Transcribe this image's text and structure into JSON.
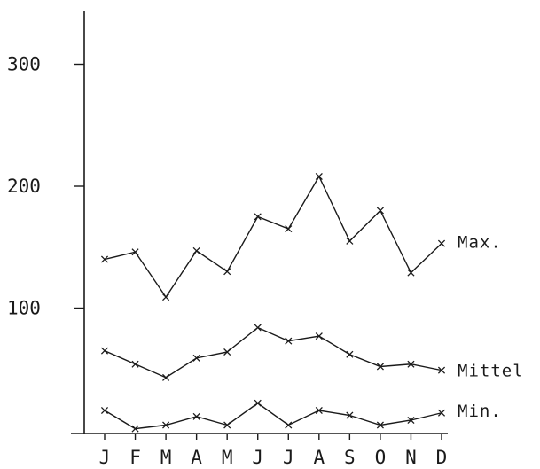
{
  "chart_data": {
    "type": "line",
    "title": "",
    "xlabel": "",
    "ylabel": "",
    "categories": [
      "J",
      "F",
      "M",
      "A",
      "M",
      "J",
      "J",
      "A",
      "S",
      "O",
      "N",
      "D"
    ],
    "yticks": [
      {
        "value": 100,
        "label": "100"
      },
      {
        "value": 200,
        "label": "200"
      },
      {
        "value": 300,
        "label": "300"
      }
    ],
    "ylim": [
      0,
      350
    ],
    "grid": false,
    "legend": "labels at line ends (right)",
    "series": [
      {
        "name": "Max.",
        "values": [
          140,
          146,
          109,
          147,
          130,
          175,
          165,
          208,
          155,
          180,
          129,
          153
        ]
      },
      {
        "name": "Mittel",
        "values": [
          65,
          54,
          43,
          59,
          64,
          84,
          73,
          77,
          62,
          52,
          54,
          49
        ]
      },
      {
        "name": "Min.",
        "values": [
          16,
          1,
          4,
          11,
          4,
          22,
          4,
          16,
          12,
          4,
          8,
          14
        ]
      }
    ],
    "colors": {
      "ink": "#1a1a1a",
      "background": "#ffffff"
    }
  }
}
